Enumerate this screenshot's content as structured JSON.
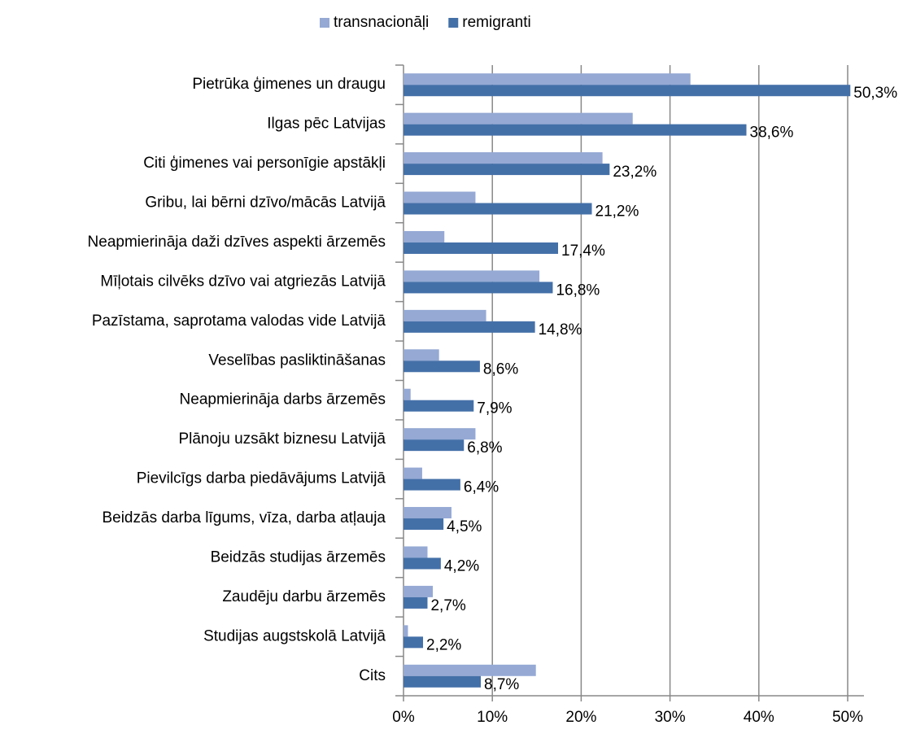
{
  "chart_data": {
    "type": "hbar",
    "categories": [
      "Pietrūka ģimenes un draugu",
      "Ilgas pēc Latvijas",
      "Citi ģimenes vai personīgie apstākļi",
      "Gribu, lai bērni dzīvo/mācās Latvijā",
      "Neapmierināja daži dzīves aspekti ārzemēs",
      "Mīļotais cilvēks dzīvo vai atgriezās Latvijā",
      "Pazīstama, saprotama valodas vide Latvijā",
      "Veselības pasliktināšanas",
      "Neapmierināja darbs ārzemēs",
      "Plānoju uzsākt biznesu Latvijā",
      "Pievilcīgs darba piedāvājums Latvijā",
      "Beidzās darba līgums, vīza, darba atļauja",
      "Beidzās studijas ārzemēs",
      "Zaudēju darbu ārzemēs",
      "Studijas augstskolā Latvijā",
      "Cits"
    ],
    "series": [
      {
        "name": "transnacionāļi",
        "color": "#95a9d4",
        "values": [
          32.3,
          25.8,
          22.4,
          8.1,
          4.6,
          15.3,
          9.3,
          4.0,
          0.8,
          8.1,
          2.1,
          5.4,
          2.7,
          3.3,
          0.5,
          14.9
        ]
      },
      {
        "name": "remigranti",
        "color": "#4470a8",
        "values": [
          50.3,
          38.6,
          23.2,
          21.2,
          17.4,
          16.8,
          14.8,
          8.6,
          7.9,
          6.8,
          6.4,
          4.5,
          4.2,
          2.7,
          2.2,
          8.7
        ],
        "value_labels": [
          "50,3%",
          "38,6%",
          "23,2%",
          "21,2%",
          "17,4%",
          "16,8%",
          "14,8%",
          "8,6%",
          "7,9%",
          "6,8%",
          "6,4%",
          "4,5%",
          "4,2%",
          "2,7%",
          "2,2%",
          "8,7%"
        ]
      }
    ],
    "xlim": [
      0,
      50
    ],
    "xticks": [
      {
        "value": 0,
        "label": "0%"
      },
      {
        "value": 10,
        "label": "10%"
      },
      {
        "value": 20,
        "label": "20%"
      },
      {
        "value": 30,
        "label": "30%"
      },
      {
        "value": 40,
        "label": "40%"
      },
      {
        "value": 50,
        "label": "50%"
      }
    ],
    "grid": true,
    "legend": "top"
  }
}
